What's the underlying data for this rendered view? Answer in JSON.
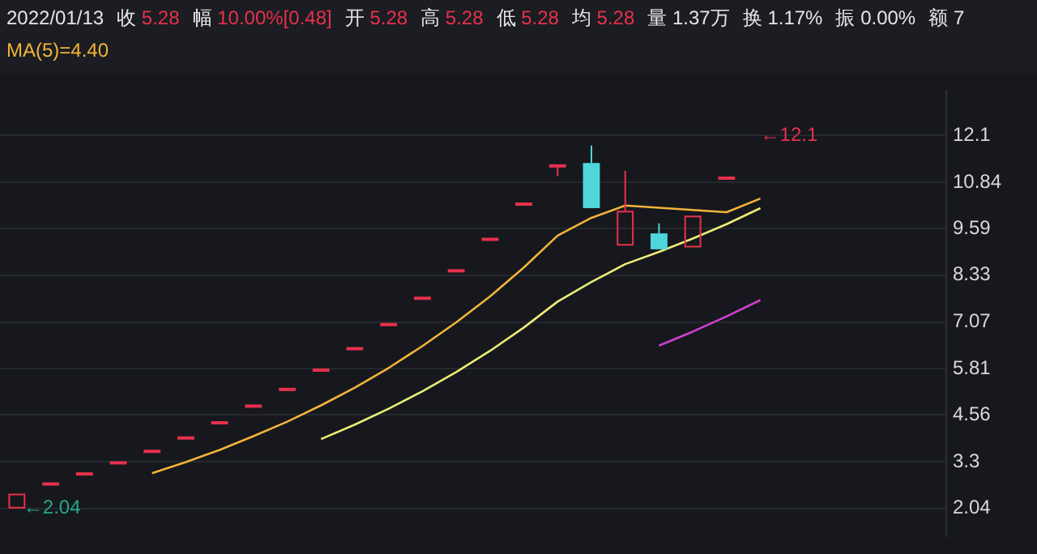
{
  "chart_data": {
    "type": "candlestick",
    "title": "2022/01/13",
    "subtitle": "MA(5)=4.40",
    "annotations": [
      "收 5.28",
      "幅 10.00%[0.48]",
      "开 5.28",
      "高 5.28",
      "低 5.28",
      "均 5.28",
      "量 1.37万",
      "换 1.17%",
      "振 0.00%",
      "额 7",
      "←12.1",
      "←2.04"
    ],
    "categories": [
      null,
      null,
      null,
      null,
      null,
      null,
      null,
      null,
      null,
      null,
      null,
      null,
      null,
      null,
      null,
      null,
      null,
      null,
      null,
      null,
      null,
      null,
      null,
      null,
      null,
      null,
      null,
      null
    ],
    "ohlc": [
      [
        2.04,
        2.44,
        2.04,
        2.44
      ],
      [
        2.7,
        2.7,
        2.7,
        2.7
      ],
      [
        2.97,
        2.97,
        2.97,
        2.97
      ],
      [
        3.27,
        3.27,
        3.27,
        3.27
      ],
      [
        3.58,
        3.58,
        3.58,
        3.58
      ],
      [
        3.94,
        3.94,
        3.94,
        3.94
      ],
      [
        4.35,
        4.35,
        4.35,
        4.35
      ],
      [
        4.8,
        4.8,
        4.8,
        4.8
      ],
      [
        5.25,
        5.25,
        5.25,
        5.25
      ],
      [
        5.77,
        5.77,
        5.77,
        5.77
      ],
      [
        6.35,
        6.35,
        6.35,
        6.35
      ],
      [
        7.0,
        7.0,
        7.0,
        7.0
      ],
      [
        7.71,
        7.71,
        7.71,
        7.71
      ],
      [
        8.45,
        8.45,
        8.45,
        8.45
      ],
      [
        9.3,
        9.3,
        9.3,
        9.3
      ],
      [
        10.25,
        10.25,
        10.25,
        10.25
      ],
      [
        11.28,
        11.28,
        11.0,
        11.28
      ],
      [
        11.36,
        11.83,
        10.14,
        10.14
      ],
      [
        9.13,
        11.15,
        9.13,
        10.07
      ],
      [
        9.46,
        9.73,
        9.03,
        9.03
      ],
      [
        9.08,
        9.94,
        9.08,
        9.94
      ],
      [
        10.95,
        10.95,
        10.95,
        10.95
      ],
      null,
      null,
      null,
      null,
      null,
      null
    ],
    "colors": [
      "#e8304c",
      "#e8304c",
      "#e8304c",
      "#e8304c",
      "#e8304c",
      "#e8304c",
      "#e8304c",
      "#e8304c",
      "#e8304c",
      "#e8304c",
      "#e8304c",
      "#e8304c",
      "#e8304c",
      "#e8304c",
      "#e8304c",
      "#e8304c",
      "#e8304c",
      "#4fd6dc",
      "#e8304c",
      "#4fd6dc",
      "#e8304c",
      "#e8304c",
      null,
      null,
      null,
      null,
      null,
      null
    ],
    "series": [
      {
        "type": "line",
        "color": "#f2b43a",
        "values": [
          null,
          null,
          null,
          null,
          2.99,
          3.29,
          3.62,
          3.99,
          4.38,
          4.82,
          5.3,
          5.83,
          6.42,
          7.06,
          7.76,
          8.54,
          9.4,
          9.88,
          10.21,
          10.15,
          10.09,
          10.03,
          10.4,
          null,
          null,
          null,
          null,
          null
        ]
      },
      {
        "type": "line",
        "color": "#ecec78",
        "values": [
          null,
          null,
          null,
          null,
          null,
          null,
          null,
          null,
          null,
          3.91,
          4.3,
          4.73,
          5.2,
          5.72,
          6.29,
          6.92,
          7.62,
          8.15,
          8.63,
          8.96,
          9.32,
          9.71,
          10.14,
          null,
          null,
          null,
          null,
          null
        ]
      },
      {
        "type": "line",
        "color": "#d23fd2",
        "values": [
          null,
          null,
          null,
          null,
          null,
          null,
          null,
          null,
          null,
          null,
          null,
          null,
          null,
          null,
          null,
          null,
          null,
          null,
          null,
          6.43,
          6.81,
          7.22,
          7.66,
          null,
          null,
          null,
          null,
          null
        ]
      }
    ],
    "ylim": [
      1.3,
      13.3
    ],
    "yticks": [
      2.04,
      3.3,
      4.56,
      5.81,
      7.07,
      8.33,
      9.59,
      10.84,
      12.1
    ],
    "grid": "y"
  }
}
